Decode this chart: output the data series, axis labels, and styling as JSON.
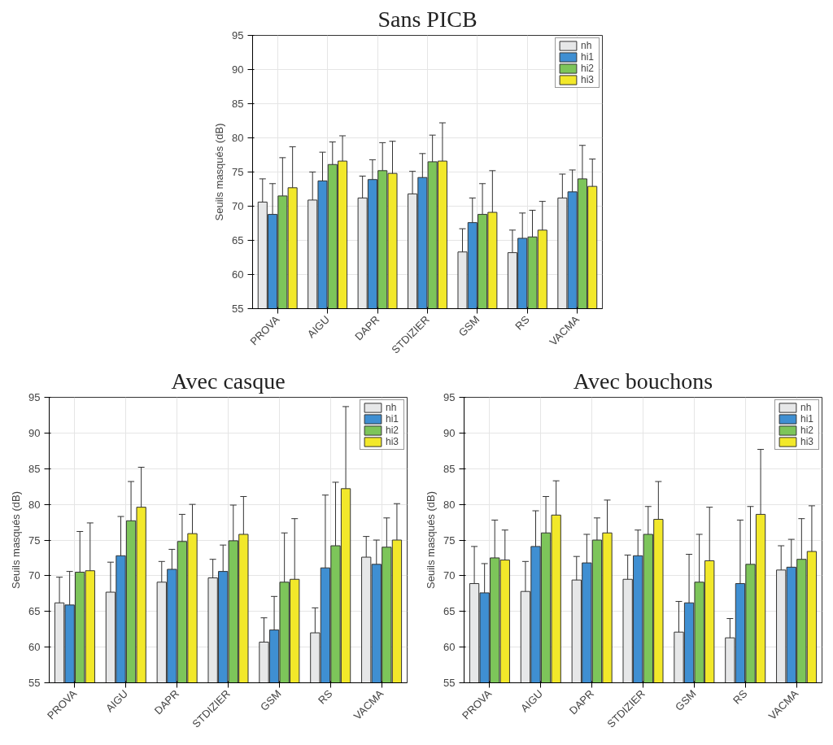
{
  "chart_data": [
    {
      "type": "bar",
      "title": "Sans PICB",
      "ylabel": "Seuils masqués (dB)",
      "categories": [
        "PROVA",
        "AIGU",
        "DAPR",
        "STDIZIER",
        "GSM",
        "RS",
        "VACMA"
      ],
      "ylim": [
        55,
        95
      ],
      "yticks": [
        55,
        60,
        65,
        70,
        75,
        80,
        85,
        90,
        95
      ],
      "grid": true,
      "legend": "top right",
      "series": [
        {
          "name": "nh",
          "color": "#e6e7e8",
          "values": [
            70.6,
            70.9,
            71.2,
            71.8,
            63.3,
            63.2,
            71.2
          ],
          "errors": [
            3.4,
            4.1,
            3.2,
            3.3,
            3.4,
            3.3,
            3.5
          ]
        },
        {
          "name": "hi1",
          "color": "#3f8fd2",
          "values": [
            68.8,
            73.7,
            73.9,
            74.2,
            67.6,
            65.3,
            72.1
          ],
          "errors": [
            4.5,
            4.2,
            2.9,
            3.5,
            3.6,
            3.7,
            3.2
          ]
        },
        {
          "name": "hi2",
          "color": "#7dc55a",
          "values": [
            71.5,
            76.1,
            75.2,
            76.5,
            68.8,
            65.5,
            74.0
          ],
          "errors": [
            5.6,
            3.3,
            4.1,
            3.9,
            4.5,
            3.9,
            4.9
          ]
        },
        {
          "name": "hi3",
          "color": "#f2e82a",
          "values": [
            72.7,
            76.6,
            74.8,
            76.6,
            69.1,
            66.5,
            72.9
          ],
          "errors": [
            6.0,
            3.7,
            4.7,
            5.6,
            6.1,
            4.2,
            4.0
          ]
        }
      ]
    },
    {
      "type": "bar",
      "title": "Avec casque",
      "ylabel": "Seuils masqués (dB)",
      "categories": [
        "PROVA",
        "AIGU",
        "DAPR",
        "STDIZIER",
        "GSM",
        "RS",
        "VACMA"
      ],
      "ylim": [
        55,
        95
      ],
      "yticks": [
        55,
        60,
        65,
        70,
        75,
        80,
        85,
        90,
        95
      ],
      "grid": true,
      "legend": "top right",
      "series": [
        {
          "name": "nh",
          "color": "#e6e7e8",
          "values": [
            66.2,
            67.7,
            69.1,
            69.7,
            60.7,
            62.0,
            72.6
          ],
          "errors": [
            3.6,
            4.2,
            2.9,
            2.6,
            3.4,
            3.5,
            2.9
          ]
        },
        {
          "name": "hi1",
          "color": "#3f8fd2",
          "values": [
            65.9,
            72.8,
            70.9,
            70.6,
            62.4,
            71.1,
            71.6
          ],
          "errors": [
            4.7,
            5.5,
            2.8,
            3.7,
            4.7,
            10.2,
            3.4
          ]
        },
        {
          "name": "hi2",
          "color": "#7dc55a",
          "values": [
            70.5,
            77.7,
            74.8,
            74.9,
            69.1,
            74.2,
            74.0
          ],
          "errors": [
            5.7,
            5.5,
            3.8,
            5.0,
            6.9,
            8.9,
            4.1
          ]
        },
        {
          "name": "hi3",
          "color": "#f2e82a",
          "values": [
            70.7,
            79.6,
            75.9,
            75.8,
            69.5,
            82.2,
            75.0
          ],
          "errors": [
            6.7,
            5.6,
            4.1,
            5.3,
            8.5,
            11.5,
            5.1
          ]
        }
      ]
    },
    {
      "type": "bar",
      "title": "Avec bouchons",
      "ylabel": "Seuils masqués (dB)",
      "categories": [
        "PROVA",
        "AIGU",
        "DAPR",
        "STDIZIER",
        "GSM",
        "RS",
        "VACMA"
      ],
      "ylim": [
        55,
        95
      ],
      "yticks": [
        55,
        60,
        65,
        70,
        75,
        80,
        85,
        90,
        95
      ],
      "grid": true,
      "legend": "top right",
      "series": [
        {
          "name": "nh",
          "color": "#e6e7e8",
          "values": [
            68.9,
            67.8,
            69.4,
            69.5,
            62.1,
            61.3,
            70.8
          ],
          "errors": [
            5.2,
            4.2,
            3.3,
            3.4,
            4.3,
            2.7,
            3.4
          ]
        },
        {
          "name": "hi1",
          "color": "#3f8fd2",
          "values": [
            67.6,
            74.1,
            71.8,
            72.8,
            66.2,
            68.9,
            71.2
          ],
          "errors": [
            4.1,
            5.0,
            4.0,
            3.6,
            6.8,
            8.9,
            3.9
          ]
        },
        {
          "name": "hi2",
          "color": "#7dc55a",
          "values": [
            72.5,
            76.0,
            75.0,
            75.8,
            69.1,
            71.6,
            72.3
          ],
          "errors": [
            5.3,
            5.1,
            3.1,
            3.9,
            6.7,
            8.1,
            5.7
          ]
        },
        {
          "name": "hi3",
          "color": "#f2e82a",
          "values": [
            72.2,
            78.5,
            76.0,
            77.9,
            72.1,
            78.6,
            73.4
          ],
          "errors": [
            4.2,
            4.8,
            4.6,
            5.3,
            7.5,
            9.1,
            6.4
          ]
        }
      ]
    }
  ]
}
